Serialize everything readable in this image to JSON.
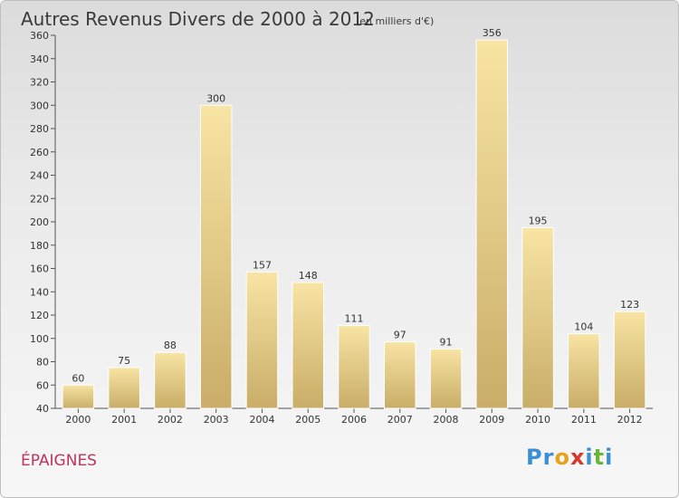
{
  "header": {
    "title": "Autres Revenus Divers de 2000 à 2012",
    "subtitle": "(en milliers d'€)"
  },
  "footer": {
    "commune": "ÉPAIGNES",
    "brand": "Proxiti",
    "brand_letters": [
      {
        "ch": "P",
        "color": "#3a8fd6"
      },
      {
        "ch": "r",
        "color": "#3a8fd6"
      },
      {
        "ch": "o",
        "color": "#e8a21a"
      },
      {
        "ch": "x",
        "color": "#d9362c"
      },
      {
        "ch": "i",
        "color": "#3a8fd6"
      },
      {
        "ch": "t",
        "color": "#6bb43a"
      },
      {
        "ch": "i",
        "color": "#3a8fd6"
      }
    ]
  },
  "chart_data": {
    "type": "bar",
    "title": "Autres Revenus Divers de 2000 à 2012",
    "subtitle": "(en milliers d'€)",
    "categories": [
      "2000",
      "2001",
      "2002",
      "2003",
      "2004",
      "2005",
      "2006",
      "2007",
      "2008",
      "2009",
      "2010",
      "2011",
      "2012"
    ],
    "values": [
      60,
      75,
      88,
      300,
      157,
      148,
      111,
      97,
      91,
      356,
      195,
      104,
      123
    ],
    "ylim": [
      40,
      360
    ],
    "yticks": [
      40,
      60,
      80,
      100,
      120,
      140,
      160,
      180,
      200,
      220,
      240,
      260,
      280,
      300,
      320,
      340,
      360
    ],
    "grid": false,
    "legend": "none",
    "bar_color_top": "#f8e4a4",
    "bar_color_bottom": "#c9ad68",
    "axis_color": "#555555"
  }
}
